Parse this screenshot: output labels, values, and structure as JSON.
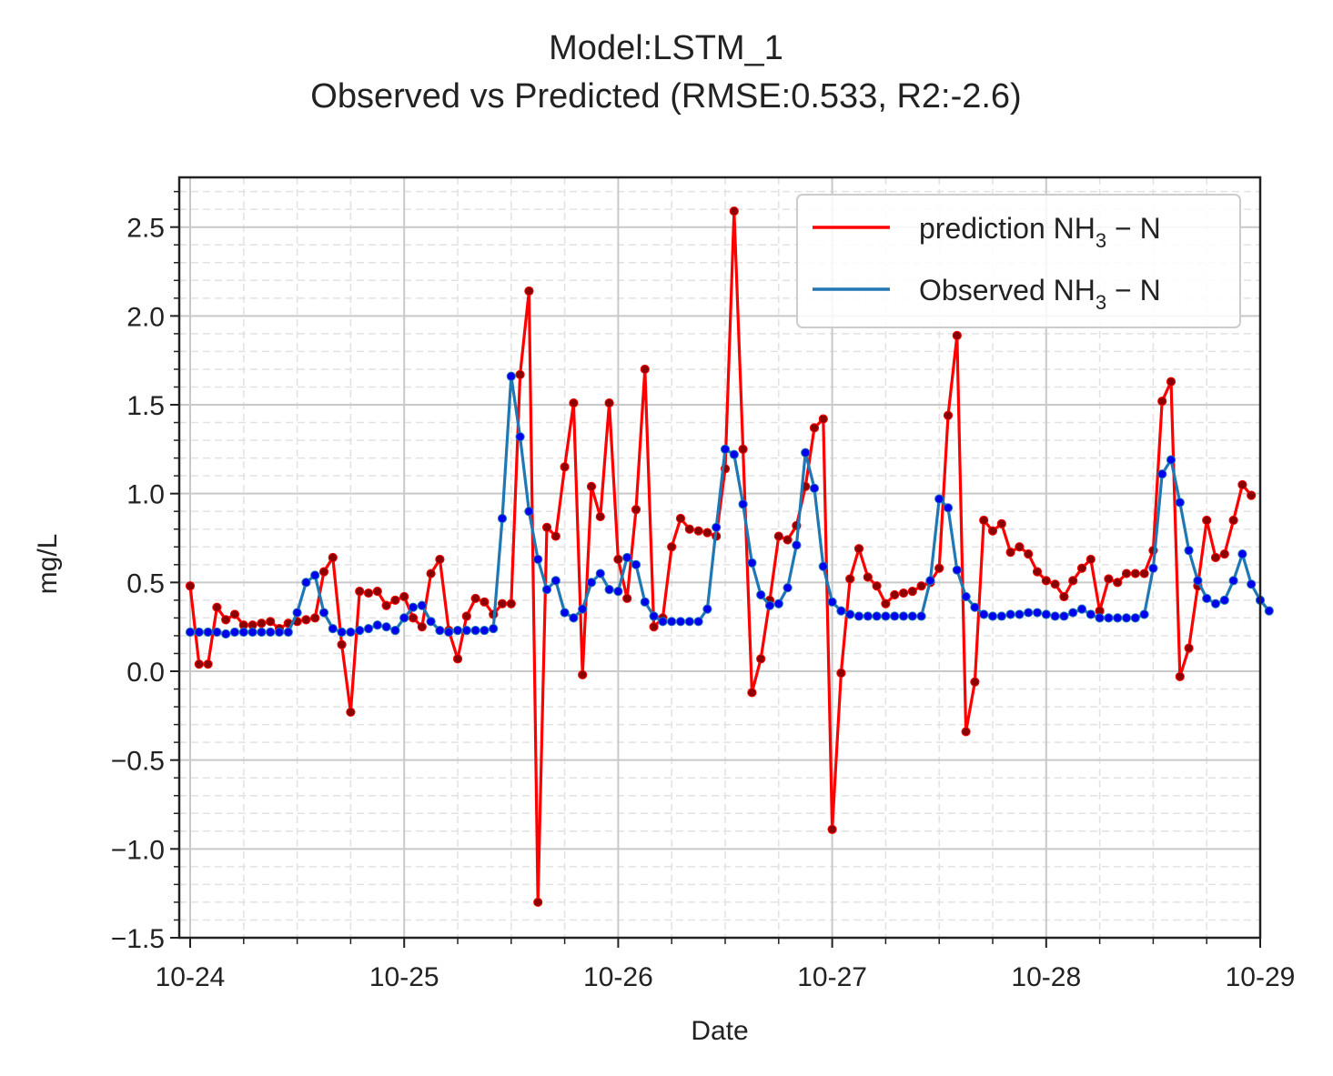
{
  "chart_data": {
    "type": "line",
    "title": "Model:LSTM_1",
    "subtitle": "Observed vs Predicted (RMSE:0.533, R2:-2.6)",
    "xlabel": "Date",
    "ylabel": "mg/L",
    "x_tick_labels": [
      "10-24",
      "10-25",
      "10-26",
      "10-27",
      "10-28",
      "10-29"
    ],
    "y_tick_labels": [
      "−1.5",
      "−1.0",
      "−0.5",
      "0.0",
      "0.5",
      "1.0",
      "1.5",
      "2.0",
      "2.5"
    ],
    "ylim": [
      -1.5,
      2.78
    ],
    "xlim": [
      "10-24",
      "10-29"
    ],
    "grid": true,
    "legend_position": "top-right",
    "x_step": "1h",
    "x_start": "10-24 00:00",
    "series": [
      {
        "name": "prediction NH3 − N",
        "legend_main": "prediction NH",
        "legend_sub": "3",
        "legend_tail": " − N",
        "color": "#ff0000",
        "marker_color": "#8b0000",
        "values": [
          0.48,
          0.04,
          0.04,
          0.36,
          0.29,
          0.32,
          0.26,
          0.26,
          0.27,
          0.28,
          0.24,
          0.27,
          0.28,
          0.29,
          0.3,
          0.56,
          0.64,
          0.15,
          -0.23,
          0.45,
          0.44,
          0.45,
          0.37,
          0.4,
          0.42,
          0.3,
          0.25,
          0.55,
          0.63,
          0.23,
          0.07,
          0.31,
          0.41,
          0.39,
          0.32,
          0.38,
          0.38,
          1.67,
          2.14,
          -1.3,
          0.81,
          0.76,
          1.15,
          1.51,
          -0.02,
          1.04,
          0.87,
          1.51,
          0.63,
          0.41,
          0.91,
          1.7,
          0.25,
          0.3,
          0.7,
          0.86,
          0.8,
          0.79,
          0.78,
          0.76,
          1.14,
          2.59,
          1.25,
          -0.12,
          0.07,
          0.4,
          0.76,
          0.74,
          0.82,
          1.04,
          1.37,
          1.42,
          -0.89,
          -0.01,
          0.52,
          0.69,
          0.53,
          0.48,
          0.38,
          0.43,
          0.44,
          0.45,
          0.48,
          0.5,
          0.58,
          1.44,
          1.89,
          -0.34,
          -0.06,
          0.85,
          0.79,
          0.83,
          0.67,
          0.7,
          0.66,
          0.56,
          0.51,
          0.49,
          0.42,
          0.51,
          0.58,
          0.63,
          0.34,
          0.52,
          0.5,
          0.55,
          0.55,
          0.55,
          0.68,
          1.52,
          1.63,
          -0.03,
          0.13,
          0.48,
          0.85,
          0.64,
          0.66,
          0.85,
          1.05,
          0.99
        ]
      },
      {
        "name": "Observed NH3 − N",
        "legend_main": "Observed NH",
        "legend_sub": "3",
        "legend_tail": " − N",
        "color": "#1f77b4",
        "marker_color": "#0000ee",
        "values": [
          0.22,
          0.22,
          0.22,
          0.22,
          0.21,
          0.22,
          0.22,
          0.22,
          0.22,
          0.22,
          0.22,
          0.22,
          0.33,
          0.5,
          0.54,
          0.33,
          0.24,
          0.22,
          0.22,
          0.23,
          0.24,
          0.26,
          0.25,
          0.23,
          0.3,
          0.36,
          0.37,
          0.28,
          0.23,
          0.22,
          0.23,
          0.23,
          0.23,
          0.23,
          0.24,
          0.86,
          1.66,
          1.32,
          0.9,
          0.63,
          0.46,
          0.51,
          0.33,
          0.3,
          0.35,
          0.5,
          0.55,
          0.46,
          0.45,
          0.64,
          0.6,
          0.39,
          0.31,
          0.28,
          0.28,
          0.28,
          0.28,
          0.28,
          0.35,
          0.81,
          1.25,
          1.22,
          0.94,
          0.61,
          0.43,
          0.37,
          0.38,
          0.47,
          0.71,
          1.23,
          1.03,
          0.59,
          0.39,
          0.34,
          0.32,
          0.31,
          0.31,
          0.31,
          0.31,
          0.31,
          0.31,
          0.31,
          0.31,
          0.51,
          0.97,
          0.92,
          0.57,
          0.42,
          0.36,
          0.32,
          0.31,
          0.31,
          0.32,
          0.32,
          0.33,
          0.33,
          0.32,
          0.31,
          0.31,
          0.33,
          0.35,
          0.32,
          0.3,
          0.3,
          0.3,
          0.3,
          0.3,
          0.32,
          0.58,
          1.11,
          1.19,
          0.95,
          0.68,
          0.51,
          0.41,
          0.38,
          0.4,
          0.51,
          0.66,
          0.49,
          0.4,
          0.34
        ]
      }
    ]
  }
}
